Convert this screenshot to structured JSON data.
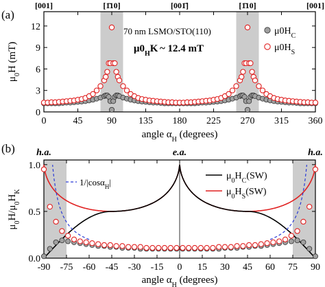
{
  "figure": {
    "panel_a_label": "(a)",
    "panel_b_label": "(b)"
  },
  "colors": {
    "axis": "#000000",
    "shade": "#cccccc",
    "hc_fill": "#a0a0a0",
    "hs_marker": "#e02020",
    "sw_hc_line": "#000000",
    "sw_hs_line": "#e02020",
    "cos_line": "#2a3bd6"
  },
  "chart_data": [
    {
      "panel": "a",
      "type": "scatter",
      "xlabel": "angle α_H (degrees)",
      "ylabel": "μ0H (mT)",
      "xlim": [
        0,
        360
      ],
      "ylim": [
        0,
        14
      ],
      "xticks": [
        "0",
        "45",
        "90",
        "135",
        "180",
        "225",
        "270",
        "315",
        "360"
      ],
      "yticks": [
        "0",
        "3",
        "6",
        "9",
        "12"
      ],
      "top_labels": [
        "[001]",
        "[1̄10]",
        "[001̄]",
        "[1̄10]",
        "[001]"
      ],
      "top_label_x": [
        0,
        90,
        180,
        270,
        360
      ],
      "annotations": [
        "70 nm LSMO/STO(110)",
        "μ0HK ~ 12.4 mT"
      ],
      "shaded_ranges": [
        [
          75,
          105
        ],
        [
          255,
          285
        ]
      ],
      "series": [
        {
          "name": "μ0HC",
          "x": [
            0,
            5,
            10,
            15,
            20,
            25,
            30,
            35,
            40,
            45,
            50,
            55,
            60,
            65,
            70,
            75,
            80,
            82,
            84,
            86,
            88,
            90,
            92,
            94,
            96,
            98,
            100,
            105,
            110,
            115,
            120,
            125,
            130,
            135,
            140,
            145,
            150,
            155,
            160,
            165,
            170,
            175,
            180,
            185,
            190,
            195,
            200,
            205,
            210,
            215,
            220,
            225,
            230,
            235,
            240,
            245,
            250,
            255,
            260,
            262,
            264,
            266,
            268,
            270,
            272,
            274,
            276,
            278,
            280,
            285,
            290,
            295,
            300,
            305,
            310,
            315,
            320,
            325,
            330,
            335,
            340,
            345,
            350,
            355,
            360
          ],
          "y": [
            1.2,
            1.2,
            1.2,
            1.2,
            1.2,
            1.25,
            1.3,
            1.3,
            1.35,
            1.4,
            1.45,
            1.5,
            1.6,
            1.7,
            1.85,
            2.0,
            2.2,
            2.3,
            2.3,
            2.1,
            1.5,
            0.3,
            1.5,
            2.1,
            2.3,
            2.3,
            2.2,
            2.0,
            1.85,
            1.7,
            1.6,
            1.5,
            1.45,
            1.4,
            1.35,
            1.3,
            1.3,
            1.25,
            1.2,
            1.2,
            1.2,
            1.2,
            1.2,
            1.2,
            1.2,
            1.2,
            1.2,
            1.25,
            1.3,
            1.3,
            1.35,
            1.4,
            1.45,
            1.5,
            1.6,
            1.7,
            1.85,
            2.0,
            2.2,
            2.3,
            2.3,
            2.1,
            1.5,
            0.3,
            1.5,
            2.1,
            2.3,
            2.3,
            2.2,
            2.0,
            1.85,
            1.7,
            1.6,
            1.5,
            1.45,
            1.4,
            1.35,
            1.3,
            1.3,
            1.25,
            1.2,
            1.2,
            1.2,
            1.2,
            1.2
          ]
        },
        {
          "name": "μ0HS",
          "x": [
            0,
            5,
            10,
            15,
            20,
            25,
            30,
            35,
            40,
            45,
            50,
            55,
            60,
            65,
            70,
            75,
            80,
            82,
            84,
            86,
            88,
            90,
            92,
            94,
            96,
            98,
            100,
            105,
            110,
            115,
            120,
            125,
            130,
            135,
            140,
            145,
            150,
            155,
            160,
            165,
            170,
            175,
            180,
            185,
            190,
            195,
            200,
            205,
            210,
            215,
            220,
            225,
            230,
            235,
            240,
            245,
            250,
            255,
            260,
            262,
            264,
            266,
            268,
            270,
            272,
            274,
            276,
            278,
            280,
            285,
            290,
            295,
            300,
            305,
            310,
            315,
            320,
            325,
            330,
            335,
            340,
            345,
            350,
            355,
            360
          ],
          "y": [
            1.3,
            1.3,
            1.35,
            1.35,
            1.4,
            1.45,
            1.5,
            1.55,
            1.6,
            1.7,
            1.8,
            1.95,
            2.2,
            2.5,
            3.0,
            3.6,
            4.4,
            4.9,
            5.6,
            6.8,
            6.8,
            11.8,
            6.8,
            6.8,
            5.6,
            4.9,
            4.4,
            3.6,
            3.0,
            2.5,
            2.2,
            1.95,
            1.8,
            1.7,
            1.6,
            1.55,
            1.5,
            1.45,
            1.4,
            1.35,
            1.35,
            1.3,
            1.3,
            1.3,
            1.35,
            1.35,
            1.4,
            1.45,
            1.5,
            1.55,
            1.6,
            1.7,
            1.8,
            1.95,
            2.2,
            2.5,
            3.0,
            3.6,
            4.4,
            4.9,
            5.6,
            6.8,
            6.8,
            11.8,
            6.8,
            6.8,
            5.6,
            4.9,
            4.4,
            3.6,
            3.0,
            2.5,
            2.2,
            1.95,
            1.8,
            1.7,
            1.6,
            1.55,
            1.5,
            1.45,
            1.4,
            1.35,
            1.35,
            1.3,
            1.3
          ]
        }
      ]
    },
    {
      "panel": "b",
      "type": "line",
      "xlabel": "angle α_H (degrees)",
      "ylabel": "μ0H/μ0HK",
      "xlim": [
        -90,
        90
      ],
      "ylim": [
        0,
        1.05
      ],
      "xticks": [
        "-90",
        "-75",
        "-60",
        "-45",
        "-30",
        "-15",
        "0",
        "15",
        "30",
        "45",
        "60",
        "75",
        "90"
      ],
      "yticks": [
        "0.0",
        "0.5",
        "1.0"
      ],
      "top_labels": [
        "h.a.",
        "e.a.",
        "h.a."
      ],
      "top_label_x": [
        -90,
        0,
        90
      ],
      "shaded_ranges": [
        [
          -90,
          -75
        ],
        [
          75,
          90
        ]
      ],
      "legend": [
        "1/|cosα_H|",
        "μ0HC(SW)",
        "μ0HS(SW)"
      ],
      "series": [
        {
          "name": "μ0HC",
          "x": [
            -90,
            -86,
            -82,
            -78,
            -74,
            -70,
            -66,
            -62,
            -58,
            -54,
            -50,
            -46,
            -42,
            -38,
            -34,
            -30,
            -26,
            -22,
            -18,
            -14,
            -10,
            -6,
            -2,
            2,
            6,
            10,
            14,
            18,
            22,
            26,
            30,
            34,
            38,
            42,
            46,
            50,
            54,
            58,
            62,
            66,
            70,
            74,
            78,
            82,
            86,
            90
          ],
          "y": [
            0.02,
            0.1,
            0.17,
            0.19,
            0.18,
            0.17,
            0.16,
            0.15,
            0.14,
            0.13,
            0.13,
            0.12,
            0.12,
            0.11,
            0.11,
            0.11,
            0.1,
            0.1,
            0.1,
            0.1,
            0.1,
            0.1,
            0.1,
            0.1,
            0.1,
            0.1,
            0.1,
            0.1,
            0.1,
            0.1,
            0.11,
            0.11,
            0.11,
            0.12,
            0.12,
            0.13,
            0.13,
            0.14,
            0.15,
            0.16,
            0.17,
            0.18,
            0.19,
            0.17,
            0.1,
            0.02
          ]
        },
        {
          "name": "μ0HS",
          "x": [
            -90,
            -86,
            -82,
            -78,
            -74,
            -70,
            -66,
            -62,
            -58,
            -54,
            -50,
            -46,
            -42,
            -38,
            -34,
            -30,
            -26,
            -22,
            -18,
            -14,
            -10,
            -6,
            -2,
            2,
            6,
            10,
            14,
            18,
            22,
            26,
            30,
            34,
            38,
            42,
            46,
            50,
            54,
            58,
            62,
            66,
            70,
            74,
            78,
            82,
            86,
            90
          ],
          "y": [
            0.95,
            0.55,
            0.39,
            0.29,
            0.24,
            0.2,
            0.18,
            0.17,
            0.16,
            0.15,
            0.14,
            0.14,
            0.13,
            0.13,
            0.12,
            0.12,
            0.12,
            0.11,
            0.11,
            0.11,
            0.11,
            0.11,
            0.11,
            0.11,
            0.11,
            0.11,
            0.11,
            0.11,
            0.11,
            0.12,
            0.12,
            0.12,
            0.13,
            0.13,
            0.14,
            0.14,
            0.15,
            0.16,
            0.17,
            0.18,
            0.2,
            0.24,
            0.29,
            0.39,
            0.55,
            0.95
          ]
        }
      ]
    }
  ]
}
